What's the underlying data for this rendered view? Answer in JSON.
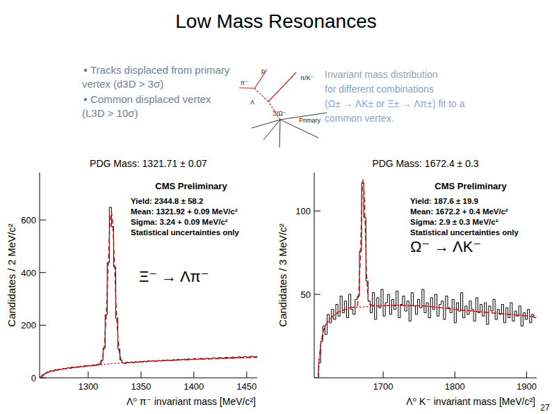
{
  "slide": {
    "title": "Low Mass Resonances",
    "bullets": [
      [
        "Tracks displaced from primary",
        "vertex  (d3D > 3σ)"
      ],
      [
        "Common displaced vertex",
        "(L3D > 10σ)"
      ]
    ],
    "description": [
      "Invariant mass distribution",
      "for different combinations",
      "(Ω± → ΛK± or Ξ± → Λπ±) fit to a",
      "common vertex."
    ],
    "diagram_labels": [
      "p",
      "π⁻",
      "π/K⁻",
      "Λ",
      "Ξ/Ω⁻",
      "Primary"
    ],
    "page_number": 27
  },
  "chart_data": [
    {
      "type": "histogram",
      "title": "PDG Mass: 1321.71 ± 0.07",
      "x_label": "Λ⁰ π⁻ invariant mass [MeV/c²]",
      "y_label": "Candidates / 2 MeV/c²",
      "stats_box": [
        "CMS Preliminary",
        "Yield: 2344.8 ± 58.2",
        "Mean: 1321.92 + 0.09 MeV/c²",
        "Sigma: 3.24 + 0.09 MeV/c²",
        "Statistical uncertainties only"
      ],
      "process": "Ξ⁻ → Λπ⁻",
      "color": "#000000",
      "xlim": [
        1254,
        1460
      ],
      "ylim": [
        0,
        780
      ],
      "xticks": [
        1300,
        1350,
        1400,
        1450
      ],
      "yticks": [
        0,
        200,
        400,
        600
      ],
      "bins": [
        1254,
        1256,
        1258,
        1260,
        1262,
        1264,
        1266,
        1268,
        1270,
        1272,
        1274,
        1276,
        1278,
        1280,
        1282,
        1284,
        1286,
        1288,
        1290,
        1292,
        1294,
        1296,
        1298,
        1300,
        1302,
        1304,
        1306,
        1308,
        1310,
        1312,
        1314,
        1316,
        1318,
        1320,
        1322,
        1324,
        1326,
        1328,
        1330,
        1332,
        1334,
        1336,
        1338,
        1340,
        1342,
        1344,
        1346,
        1348,
        1350,
        1352,
        1354,
        1356,
        1358,
        1360,
        1362,
        1364,
        1366,
        1368,
        1370,
        1372,
        1374,
        1376,
        1378,
        1380,
        1382,
        1384,
        1386,
        1388,
        1390,
        1392,
        1394,
        1396,
        1398,
        1400,
        1402,
        1404,
        1406,
        1408,
        1410,
        1412,
        1414,
        1416,
        1418,
        1420,
        1422,
        1424,
        1426,
        1428,
        1430,
        1432,
        1434,
        1436,
        1438,
        1440,
        1442,
        1444,
        1446,
        1448,
        1450,
        1452,
        1454,
        1456,
        1458,
        1460
      ],
      "values": [
        3,
        11,
        15,
        21,
        22,
        27,
        25,
        31,
        29,
        33,
        32,
        36,
        34,
        38,
        36,
        41,
        38,
        42,
        40,
        44,
        42,
        46,
        44,
        47,
        45,
        49,
        47,
        51,
        50,
        67,
        113,
        240,
        437,
        648,
        575,
        422,
        227,
        110,
        68,
        57,
        55,
        59,
        57,
        60,
        58,
        61,
        59,
        62,
        60,
        63,
        61,
        64,
        62,
        65,
        63,
        64,
        66,
        64,
        67,
        65,
        68,
        66,
        67,
        69,
        67,
        70,
        68,
        69,
        71,
        69,
        72,
        70,
        71,
        73,
        70,
        72,
        74,
        71,
        73,
        75,
        72,
        74,
        76,
        73,
        75,
        77,
        74,
        76,
        78,
        75,
        77,
        79,
        76,
        78,
        80,
        77,
        79,
        81,
        78,
        80,
        82,
        79,
        81
      ],
      "series": [
        {
          "type": "line",
          "line_style": "dashed",
          "color": "#e8000b",
          "x": [
            1255,
            1258,
            1262,
            1270,
            1280,
            1290,
            1300,
            1305,
            1310,
            1313,
            1315,
            1317,
            1318,
            1319,
            1320,
            1321,
            1322,
            1323,
            1324,
            1325,
            1326,
            1327,
            1329,
            1331,
            1334,
            1340,
            1350,
            1370,
            1400,
            1430,
            1460
          ],
          "values": [
            0,
            12,
            21,
            30,
            36,
            41,
            45,
            47,
            50,
            64,
            111,
            234,
            330,
            438,
            537,
            608,
            630,
            600,
            524,
            421,
            316,
            224,
            108,
            67,
            57,
            58,
            61,
            65,
            70,
            74,
            78
          ]
        },
        {
          "type": "line",
          "line_style": "dotted",
          "color": "#e8000b",
          "x": [
            1255,
            1258,
            1262,
            1270,
            1280,
            1290,
            1300,
            1320,
            1340,
            1350,
            1370,
            1400,
            1430,
            1460
          ],
          "values": [
            0,
            12,
            21,
            30,
            36,
            41,
            45,
            53,
            58,
            61,
            65,
            70,
            74,
            78
          ]
        }
      ]
    },
    {
      "type": "histogram",
      "title": "PDG Mass: 1672.4 ± 0.3",
      "x_label": "Λ⁰ K⁻ invariant mass [MeV/c²]",
      "y_label": "Candidates / 3 MeV/c²",
      "stats_box": [
        "CMS Preliminary",
        "Yield: 187.6 ± 19.9",
        "Mean: 1672.2 + 0.4 MeV/c²",
        "Sigma: 2.9 ± 0.3 MeV/c²",
        "Statistical uncertainties only"
      ],
      "process": "Ω⁻ → ΛK⁻",
      "color": "#000000",
      "xlim": [
        1604,
        1914
      ],
      "ylim": [
        0,
        123
      ],
      "xticks": [
        1700,
        1800,
        1900
      ],
      "yticks": [
        50,
        100
      ],
      "bins": [
        1604,
        1607,
        1610,
        1613,
        1616,
        1619,
        1622,
        1625,
        1628,
        1631,
        1634,
        1637,
        1640,
        1643,
        1646,
        1649,
        1652,
        1655,
        1658,
        1661,
        1664,
        1667,
        1670,
        1673,
        1676,
        1679,
        1682,
        1685,
        1688,
        1691,
        1694,
        1697,
        1700,
        1703,
        1706,
        1709,
        1712,
        1715,
        1718,
        1721,
        1724,
        1727,
        1730,
        1733,
        1736,
        1739,
        1742,
        1745,
        1748,
        1751,
        1754,
        1757,
        1760,
        1763,
        1766,
        1769,
        1772,
        1775,
        1778,
        1781,
        1784,
        1787,
        1790,
        1793,
        1796,
        1799,
        1802,
        1805,
        1808,
        1811,
        1814,
        1817,
        1820,
        1823,
        1826,
        1829,
        1832,
        1835,
        1838,
        1841,
        1844,
        1847,
        1850,
        1853,
        1856,
        1859,
        1862,
        1865,
        1868,
        1871,
        1874,
        1877,
        1880,
        1883,
        1886,
        1889,
        1892,
        1895,
        1898,
        1901,
        1904,
        1907,
        1910,
        1913
      ],
      "values": [
        0,
        0,
        9,
        22,
        31,
        26,
        38,
        33,
        41,
        35,
        44,
        37,
        49,
        39,
        46,
        36,
        50,
        41,
        38,
        47,
        49,
        76,
        117,
        96,
        58,
        46,
        39,
        51,
        35,
        48,
        42,
        53,
        37,
        45,
        50,
        38,
        47,
        41,
        52,
        36,
        44,
        49,
        40,
        46,
        34,
        51,
        43,
        38,
        47,
        42,
        53,
        39,
        45,
        36,
        48,
        41,
        50,
        37,
        44,
        46,
        35,
        49,
        42,
        39,
        47,
        33,
        45,
        40,
        51,
        36,
        43,
        38,
        46,
        41,
        34,
        48,
        39,
        44,
        37,
        45,
        32,
        43,
        40,
        47,
        35,
        41,
        38,
        44,
        33,
        42,
        36,
        45,
        34,
        40,
        37,
        43,
        31,
        39,
        35,
        41,
        33,
        38,
        36
      ],
      "series": [
        {
          "type": "line",
          "line_style": "dashed",
          "color": "#e8000b",
          "x": [
            1609.5,
            1611,
            1613,
            1616,
            1620,
            1630,
            1640,
            1655,
            1664,
            1666,
            1668,
            1669,
            1670,
            1671,
            1672,
            1673,
            1674,
            1675,
            1676,
            1677,
            1679,
            1681,
            1690,
            1720,
            1760,
            1800,
            1850,
            1914
          ],
          "values": [
            0,
            12,
            20,
            27,
            32,
            37,
            40,
            42,
            43,
            50,
            69,
            84,
            100,
            113,
            119,
            117,
            106,
            91,
            75,
            62,
            47,
            44,
            43,
            43.5,
            43,
            41,
            39,
            36.5
          ]
        },
        {
          "type": "line",
          "line_style": "dotted",
          "color": "#e8000b",
          "x": [
            1609.5,
            1611,
            1613,
            1616,
            1620,
            1630,
            1640,
            1655,
            1690,
            1720,
            1760,
            1800,
            1850,
            1914
          ],
          "values": [
            0,
            12,
            20,
            27,
            32,
            37,
            40,
            42,
            43,
            43.5,
            43,
            41,
            39,
            36.5
          ]
        }
      ]
    }
  ]
}
